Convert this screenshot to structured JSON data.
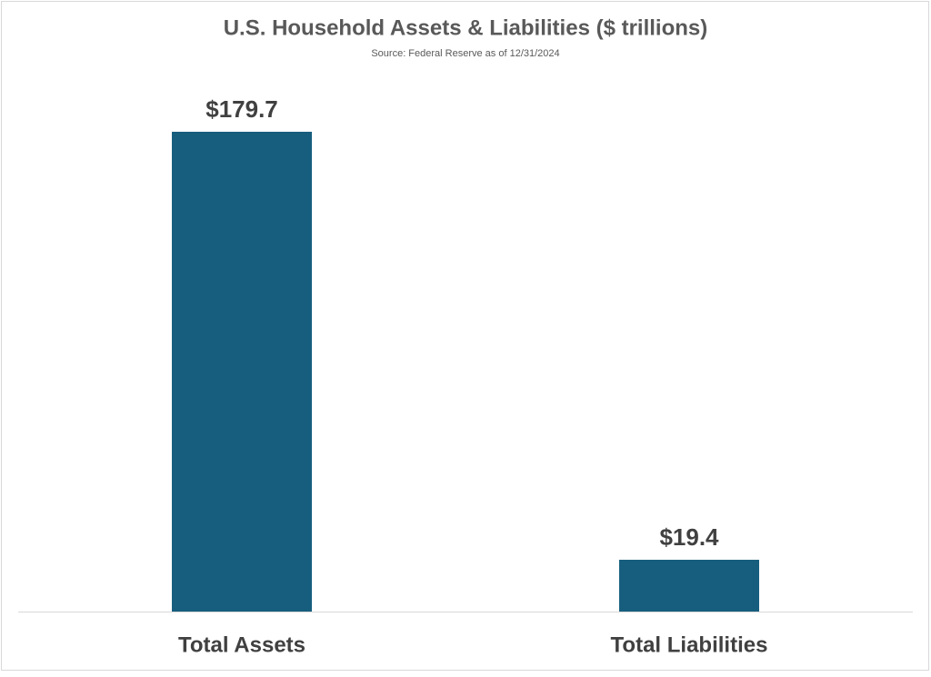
{
  "chart_data": {
    "type": "bar",
    "title": "U.S. Household Assets & Liabilities ($ trillions)",
    "subtitle": "Source: Federal Reserve as of 12/31/2024",
    "categories": [
      "Total Assets",
      "Total Liabilities"
    ],
    "values": [
      179.7,
      19.4
    ],
    "value_labels": [
      "$179.7",
      "$19.4"
    ],
    "color": "#175e7e"
  }
}
